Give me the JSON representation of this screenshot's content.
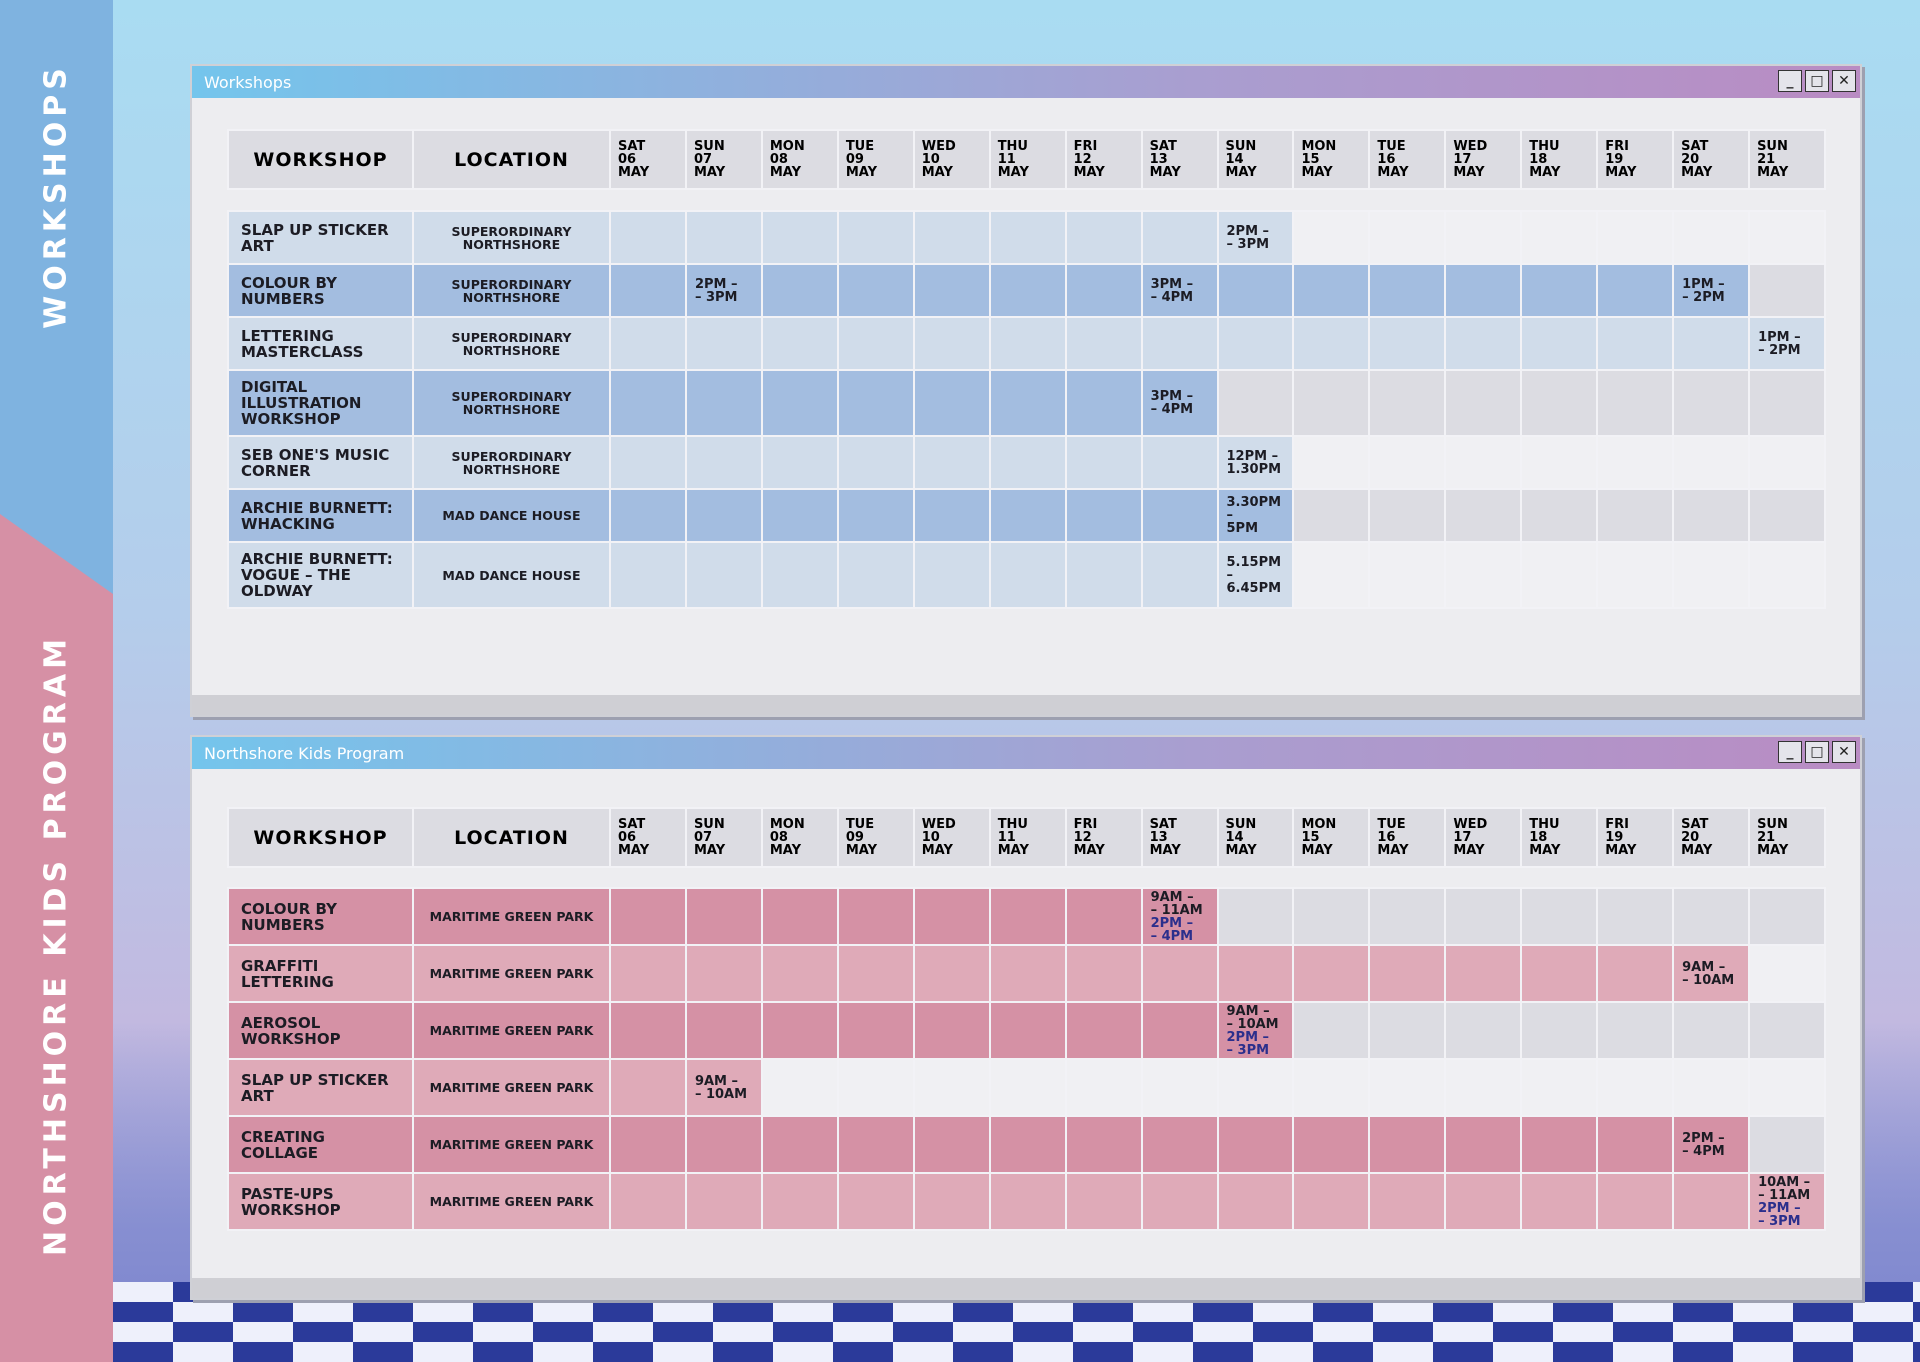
{
  "sidebar": {
    "top_label": "WORKSHOPS",
    "bottom_label": "NORTHSHORE KIDS PROGRAM"
  },
  "windows": [
    {
      "title": "Workshops",
      "columns": {
        "workshop": "WORKSHOP",
        "location": "LOCATION"
      },
      "days": [
        {
          "dow": "SAT",
          "date": "06",
          "month": "MAY"
        },
        {
          "dow": "SUN",
          "date": "07",
          "month": "MAY"
        },
        {
          "dow": "MON",
          "date": "08",
          "month": "MAY"
        },
        {
          "dow": "TUE",
          "date": "09",
          "month": "MAY"
        },
        {
          "dow": "WED",
          "date": "10",
          "month": "MAY"
        },
        {
          "dow": "THU",
          "date": "11",
          "month": "MAY"
        },
        {
          "dow": "FRI",
          "date": "12",
          "month": "MAY"
        },
        {
          "dow": "SAT",
          "date": "13",
          "month": "MAY"
        },
        {
          "dow": "SUN",
          "date": "14",
          "month": "MAY"
        },
        {
          "dow": "MON",
          "date": "15",
          "month": "MAY"
        },
        {
          "dow": "TUE",
          "date": "16",
          "month": "MAY"
        },
        {
          "dow": "WED",
          "date": "17",
          "month": "MAY"
        },
        {
          "dow": "THU",
          "date": "18",
          "month": "MAY"
        },
        {
          "dow": "FRI",
          "date": "19",
          "month": "MAY"
        },
        {
          "dow": "SAT",
          "date": "20",
          "month": "MAY"
        },
        {
          "dow": "SUN",
          "date": "21",
          "month": "MAY"
        }
      ],
      "rows": [
        {
          "workshop": "SLAP UP STICKER ART",
          "location": "SUPERORDINARY NORTHSHORE",
          "times": [
            null,
            null,
            null,
            null,
            null,
            null,
            null,
            null,
            [
              [
                "2PM –",
                "– 3PM"
              ]
            ],
            null,
            null,
            null,
            null,
            null,
            null,
            null
          ]
        },
        {
          "workshop": "COLOUR BY NUMBERS",
          "location": "SUPERORDINARY NORTHSHORE",
          "times": [
            null,
            [
              [
                "2PM –",
                "– 3PM"
              ]
            ],
            null,
            null,
            null,
            null,
            null,
            [
              [
                "3PM –",
                "– 4PM"
              ]
            ],
            null,
            null,
            null,
            null,
            null,
            null,
            [
              [
                "1PM –",
                "– 2PM"
              ]
            ],
            null
          ]
        },
        {
          "workshop": "LETTERING MASTERCLASS",
          "location": "SUPERORDINARY NORTHSHORE",
          "times": [
            null,
            null,
            null,
            null,
            null,
            null,
            null,
            null,
            null,
            null,
            null,
            null,
            null,
            null,
            null,
            [
              [
                "1PM –",
                "– 2PM"
              ]
            ]
          ]
        },
        {
          "workshop": "DIGITAL ILLUSTRATION WORKSHOP",
          "location": "SUPERORDINARY NORTHSHORE",
          "times": [
            null,
            null,
            null,
            null,
            null,
            null,
            null,
            [
              [
                "3PM –",
                "– 4PM"
              ]
            ],
            null,
            null,
            null,
            null,
            null,
            null,
            null,
            null
          ]
        },
        {
          "workshop": "SEB ONE'S MUSIC CORNER",
          "location": "SUPERORDINARY NORTHSHORE",
          "times": [
            null,
            null,
            null,
            null,
            null,
            null,
            null,
            null,
            [
              [
                "12PM –",
                "1.30PM"
              ]
            ],
            null,
            null,
            null,
            null,
            null,
            null,
            null
          ]
        },
        {
          "workshop": "ARCHIE BURNETT: WHACKING",
          "location": "MAD DANCE HOUSE",
          "times": [
            null,
            null,
            null,
            null,
            null,
            null,
            null,
            null,
            [
              [
                "3.30PM",
                "–",
                "5PM"
              ]
            ],
            null,
            null,
            null,
            null,
            null,
            null,
            null
          ]
        },
        {
          "workshop": "ARCHIE BURNETT: VOGUE – THE OLDWAY",
          "location": "MAD DANCE HOUSE",
          "times": [
            null,
            null,
            null,
            null,
            null,
            null,
            null,
            null,
            [
              [
                "5.15PM",
                "–",
                "6.45PM"
              ]
            ],
            null,
            null,
            null,
            null,
            null,
            null,
            null
          ]
        }
      ]
    },
    {
      "title": "Northshore Kids Program",
      "columns": {
        "workshop": "WORKSHOP",
        "location": "LOCATION"
      },
      "days": [
        {
          "dow": "SAT",
          "date": "06",
          "month": "MAY"
        },
        {
          "dow": "SUN",
          "date": "07",
          "month": "MAY"
        },
        {
          "dow": "MON",
          "date": "08",
          "month": "MAY"
        },
        {
          "dow": "TUE",
          "date": "09",
          "month": "MAY"
        },
        {
          "dow": "WED",
          "date": "10",
          "month": "MAY"
        },
        {
          "dow": "THU",
          "date": "11",
          "month": "MAY"
        },
        {
          "dow": "FRI",
          "date": "12",
          "month": "MAY"
        },
        {
          "dow": "SAT",
          "date": "13",
          "month": "MAY"
        },
        {
          "dow": "SUN",
          "date": "14",
          "month": "MAY"
        },
        {
          "dow": "MON",
          "date": "15",
          "month": "MAY"
        },
        {
          "dow": "TUE",
          "date": "16",
          "month": "MAY"
        },
        {
          "dow": "WED",
          "date": "17",
          "month": "MAY"
        },
        {
          "dow": "THU",
          "date": "18",
          "month": "MAY"
        },
        {
          "dow": "FRI",
          "date": "19",
          "month": "MAY"
        },
        {
          "dow": "SAT",
          "date": "20",
          "month": "MAY"
        },
        {
          "dow": "SUN",
          "date": "21",
          "month": "MAY"
        }
      ],
      "rows": [
        {
          "workshop": "COLOUR BY NUMBERS",
          "location": "MARITIME GREEN PARK",
          "times": [
            null,
            null,
            null,
            null,
            null,
            null,
            null,
            [
              [
                "9AM –",
                "– 11AM"
              ],
              [
                "2PM –",
                "– 4PM"
              ]
            ],
            null,
            null,
            null,
            null,
            null,
            null,
            null,
            null
          ]
        },
        {
          "workshop": "GRAFFITI LETTERING",
          "location": "MARITIME GREEN PARK",
          "times": [
            null,
            null,
            null,
            null,
            null,
            null,
            null,
            null,
            null,
            null,
            null,
            null,
            null,
            null,
            [
              [
                "9AM –",
                "– 10AM"
              ]
            ],
            null
          ]
        },
        {
          "workshop": "AEROSOL WORKSHOP",
          "location": "MARITIME GREEN PARK",
          "times": [
            null,
            null,
            null,
            null,
            null,
            null,
            null,
            null,
            [
              [
                "9AM –",
                "– 10AM"
              ],
              [
                "2PM –",
                "– 3PM"
              ]
            ],
            null,
            null,
            null,
            null,
            null,
            null,
            null
          ]
        },
        {
          "workshop": "SLAP UP STICKER ART",
          "location": "MARITIME GREEN PARK",
          "times": [
            null,
            [
              [
                "9AM –",
                "– 10AM"
              ]
            ],
            null,
            null,
            null,
            null,
            null,
            null,
            null,
            null,
            null,
            null,
            null,
            null,
            null,
            null
          ]
        },
        {
          "workshop": "CREATING COLLAGE",
          "location": "MARITIME GREEN PARK",
          "times": [
            null,
            null,
            null,
            null,
            null,
            null,
            null,
            null,
            null,
            null,
            null,
            null,
            null,
            null,
            [
              [
                "2PM –",
                "– 4PM"
              ]
            ],
            null
          ]
        },
        {
          "workshop": "PASTE-UPS WORKSHOP",
          "location": "MARITIME GREEN PARK",
          "times": [
            null,
            null,
            null,
            null,
            null,
            null,
            null,
            null,
            null,
            null,
            null,
            null,
            null,
            null,
            null,
            [
              [
                "10AM –",
                "– 11AM"
              ],
              [
                "2PM –",
                "– 3PM"
              ]
            ]
          ]
        }
      ]
    }
  ]
}
